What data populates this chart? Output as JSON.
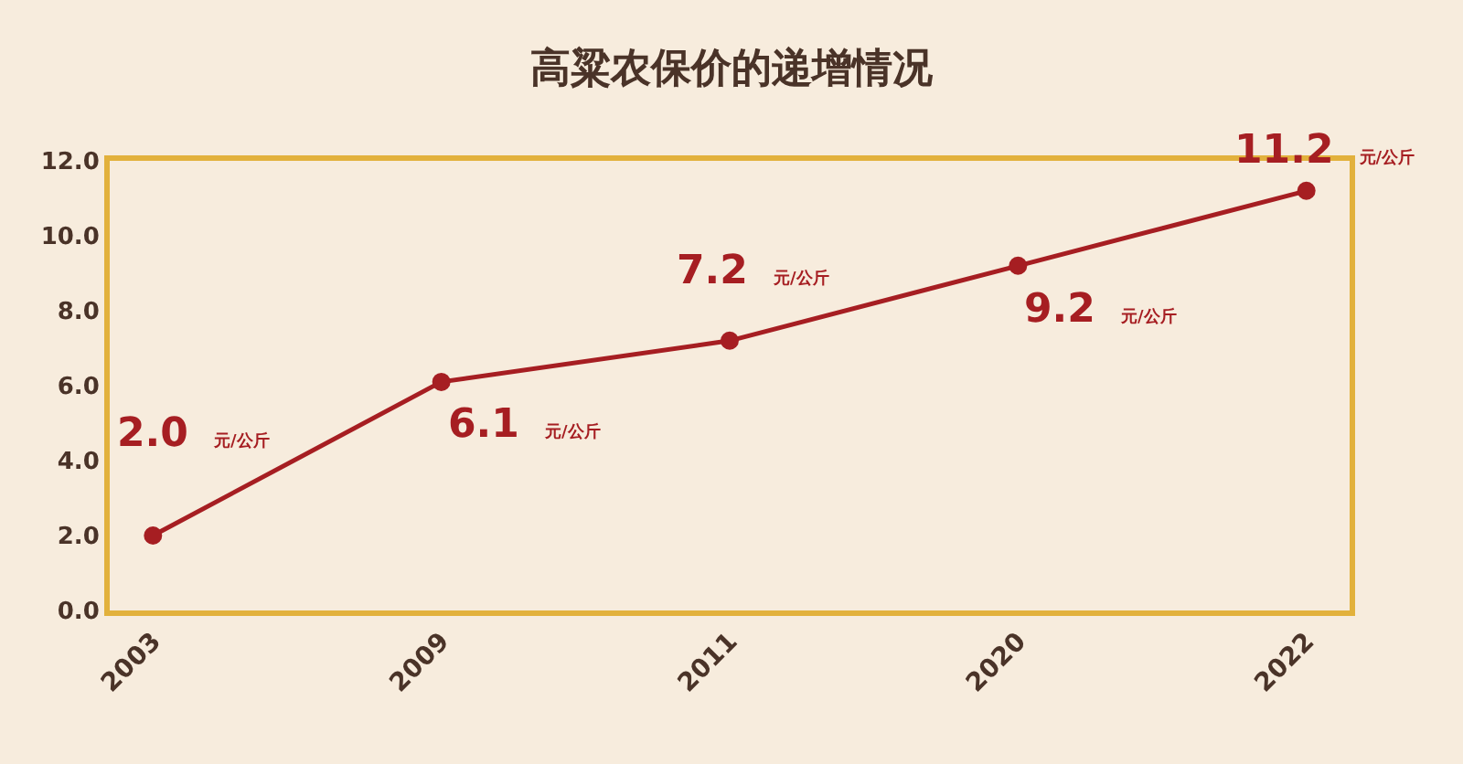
{
  "chart_data": {
    "type": "line",
    "title": "高粱农保价的递增情况",
    "categories": [
      "2003",
      "2009",
      "2011",
      "2020",
      "2022"
    ],
    "series": [
      {
        "color": "#a61e22",
        "values": [
          2.0,
          6.1,
          7.2,
          9.2,
          11.2
        ],
        "value_labels": [
          "2.0 元/公斤",
          "6.1 元/公斤",
          "7.2 元/公斤",
          "9.2 元/公斤",
          "11.2 元/公斤"
        ]
      }
    ],
    "ylim": [
      0,
      12
    ],
    "yticks": [
      {
        "value": 0,
        "label": "0.0"
      },
      {
        "value": 2,
        "label": "2.0"
      },
      {
        "value": 4,
        "label": "4.0"
      },
      {
        "value": 6,
        "label": "6.0"
      },
      {
        "value": 8,
        "label": "8.0"
      },
      {
        "value": 10,
        "label": "10.0"
      },
      {
        "value": 12,
        "label": "12.0"
      }
    ],
    "grid": false,
    "marker": "circle",
    "line_style": "solid"
  }
}
